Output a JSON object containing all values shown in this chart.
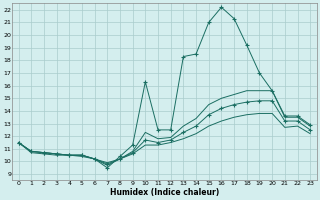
{
  "xlabel": "Humidex (Indice chaleur)",
  "background_color": "#d4eeee",
  "grid_color": "#aacccc",
  "line_color": "#1a6e62",
  "xlim": [
    -0.5,
    23.5
  ],
  "ylim": [
    8.5,
    22.5
  ],
  "xticks": [
    0,
    1,
    2,
    3,
    4,
    5,
    6,
    7,
    8,
    9,
    10,
    11,
    12,
    13,
    14,
    15,
    16,
    17,
    18,
    19,
    20,
    21,
    22,
    23
  ],
  "yticks": [
    9,
    10,
    11,
    12,
    13,
    14,
    15,
    16,
    17,
    18,
    19,
    20,
    21,
    22
  ],
  "lines": [
    {
      "x": [
        0,
        1,
        2,
        3,
        4,
        5,
        6,
        7,
        8,
        9,
        10,
        11,
        12,
        13,
        14,
        15,
        16,
        17,
        18,
        19,
        20,
        21,
        22,
        23
      ],
      "y": [
        11.5,
        10.8,
        10.7,
        10.6,
        10.5,
        10.5,
        10.2,
        9.5,
        10.4,
        11.3,
        16.3,
        12.5,
        12.5,
        18.3,
        18.5,
        21.0,
        22.2,
        21.3,
        19.2,
        17.0,
        15.6,
        13.6,
        13.6,
        12.9
      ],
      "has_markers": true
    },
    {
      "x": [
        0,
        1,
        2,
        3,
        4,
        5,
        6,
        7,
        8,
        9,
        10,
        11,
        12,
        13,
        14,
        15,
        16,
        17,
        18,
        19,
        20,
        21,
        22,
        23
      ],
      "y": [
        11.5,
        10.8,
        10.7,
        10.6,
        10.5,
        10.5,
        10.2,
        9.7,
        10.2,
        10.8,
        12.3,
        11.8,
        11.9,
        12.8,
        13.4,
        14.5,
        15.0,
        15.3,
        15.6,
        15.6,
        15.6,
        13.5,
        13.5,
        12.8
      ],
      "has_markers": false
    },
    {
      "x": [
        0,
        1,
        2,
        3,
        4,
        5,
        6,
        7,
        8,
        9,
        10,
        11,
        12,
        13,
        14,
        15,
        16,
        17,
        18,
        19,
        20,
        21,
        22,
        23
      ],
      "y": [
        11.5,
        10.8,
        10.7,
        10.6,
        10.5,
        10.5,
        10.2,
        9.8,
        10.2,
        10.7,
        11.7,
        11.5,
        11.7,
        12.3,
        12.8,
        13.7,
        14.2,
        14.5,
        14.7,
        14.8,
        14.8,
        13.2,
        13.2,
        12.5
      ],
      "has_markers": true
    },
    {
      "x": [
        0,
        1,
        2,
        3,
        4,
        5,
        6,
        7,
        8,
        9,
        10,
        11,
        12,
        13,
        14,
        15,
        16,
        17,
        18,
        19,
        20,
        21,
        22,
        23
      ],
      "y": [
        11.5,
        10.7,
        10.6,
        10.5,
        10.5,
        10.4,
        10.2,
        9.9,
        10.2,
        10.6,
        11.3,
        11.3,
        11.5,
        11.8,
        12.2,
        12.8,
        13.2,
        13.5,
        13.7,
        13.8,
        13.8,
        12.7,
        12.8,
        12.2
      ],
      "has_markers": false
    }
  ]
}
